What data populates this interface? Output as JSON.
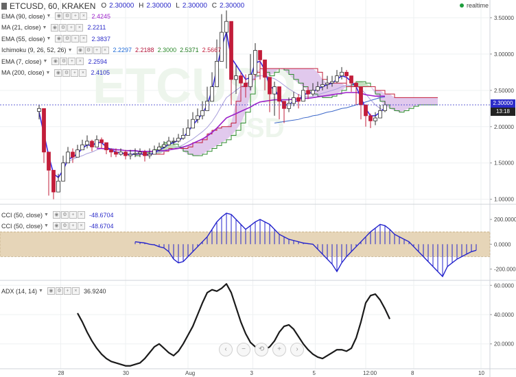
{
  "legend": {
    "symbol": "ETCUSD, 60, KRAKEN",
    "ohlc": {
      "o_label": "O",
      "o": "2.30000",
      "h_label": "H",
      "h": "2.30000",
      "l_label": "L",
      "l": "2.30000",
      "c_label": "C",
      "c": "2.30000"
    },
    "rows": [
      {
        "name": "EMA (90, close)",
        "values": [
          "2.4245"
        ],
        "colors": [
          "#9b1fc9"
        ]
      },
      {
        "name": "MA (21, close)",
        "values": [
          "2.2211"
        ],
        "colors": [
          "#2c2cc9"
        ]
      },
      {
        "name": "EMA (55, close)",
        "values": [
          "2.3837"
        ],
        "colors": [
          "#2c2cc9"
        ]
      },
      {
        "name": "Ichimoku (9, 26, 52, 26)",
        "values": [
          "2.2297",
          "2.2188",
          "2.3000",
          "2.5371",
          "2.5667"
        ],
        "colors": [
          "#1e6ad6",
          "#b3163b",
          "#2c8a2c",
          "#1e7a1e",
          "#c21d3a"
        ]
      },
      {
        "name": "EMA (7, close)",
        "values": [
          "2.2594"
        ],
        "colors": [
          "#2c2cc9"
        ]
      },
      {
        "name": "MA (200, close)",
        "values": [
          "2.4105"
        ],
        "colors": [
          "#2c2cc9"
        ]
      }
    ],
    "cci_rows": [
      {
        "name": "CCI (50, close)",
        "value": "-48.6704"
      },
      {
        "name": "CCI (50, close)",
        "value": "-48.6704"
      }
    ],
    "adx_row": {
      "name": "ADX (14, 14)",
      "value": "36.9240"
    }
  },
  "realtime_label": "realtime",
  "watermark": {
    "main": "ETCUSD",
    "sub": "ETCUSD"
  },
  "price_tag": {
    "price": "2.30000",
    "time": "13:18"
  },
  "nav_buttons": [
    "‹",
    "−",
    "⟲",
    "+",
    "›"
  ],
  "colors": {
    "up": "#2b2b2b",
    "down": "#c21d3a",
    "ema7": "#3a2ae0",
    "ma200": "#3a66c9",
    "ema90": "#9b1fc9",
    "ma21": "#a79ddb",
    "kumo_bull": "#b7d9b3",
    "kumo_bear": "#dcc0ea",
    "senkou_a": "#2c8a2c",
    "senkou_b": "#c21d3a",
    "cci": "#2222cc",
    "cci_band": "#e6d5b8",
    "adx": "#1a1a1a"
  },
  "chart_data": [
    {
      "type": "candlestick",
      "title": "ETCUSD, 60, KRAKEN",
      "x_ticks": [
        "28",
        "30",
        "Aug",
        "3",
        "5",
        "12:00",
        "8",
        "10"
      ],
      "y_ticks": [
        "1.00000",
        "1.50000",
        "2.00000",
        "2.50000",
        "3.00000",
        "3.50000"
      ],
      "ylim": [
        0.95,
        3.65
      ],
      "last_price": 2.3,
      "indicators": [
        "EMA (90, close)",
        "MA (21, close)",
        "EMA (55, close)",
        "Ichimoku (9, 26, 52, 26)",
        "EMA (7, close)",
        "MA (200, close)"
      ],
      "series": [
        {
          "name": "close",
          "values": [
            2.25,
            1.65,
            1.4,
            1.1,
            1.25,
            1.5,
            1.65,
            1.58,
            1.68,
            1.75,
            1.8,
            1.72,
            1.82,
            1.78,
            1.68,
            1.65,
            1.62,
            1.65,
            1.6,
            1.62,
            1.63,
            1.65,
            1.6,
            1.62,
            1.68,
            1.72,
            1.75,
            1.8,
            1.8,
            1.84,
            1.88,
            1.98,
            2.1,
            2.15,
            2.22,
            2.35,
            2.55,
            2.9,
            3.3,
            3.45,
            2.65,
            2.7,
            2.6,
            2.55,
            2.72,
            3.05,
            2.92,
            2.68,
            2.45,
            2.55,
            2.35,
            2.25,
            2.32,
            2.4,
            2.35,
            2.5,
            2.45,
            2.5,
            2.55,
            2.58,
            2.6,
            2.62,
            2.7,
            2.75,
            2.7,
            2.6,
            2.55,
            2.3,
            2.15,
            2.08,
            2.12,
            2.22,
            2.3
          ]
        },
        {
          "name": "high",
          "values": [
            2.3,
            2.0,
            1.65,
            1.3,
            1.35,
            1.6,
            1.72,
            1.7,
            1.75,
            1.82,
            1.88,
            1.82,
            1.88,
            1.85,
            1.76,
            1.7,
            1.7,
            1.7,
            1.68,
            1.68,
            1.7,
            1.7,
            1.68,
            1.7,
            1.74,
            1.78,
            1.8,
            1.86,
            1.85,
            1.9,
            1.98,
            2.1,
            2.2,
            2.25,
            2.35,
            2.55,
            2.75,
            3.2,
            3.55,
            3.6,
            3.1,
            2.85,
            2.75,
            2.72,
            3.0,
            3.15,
            3.02,
            2.85,
            2.6,
            2.62,
            2.5,
            2.35,
            2.4,
            2.48,
            2.45,
            2.6,
            2.55,
            2.6,
            2.62,
            2.65,
            2.7,
            2.7,
            2.78,
            2.82,
            2.78,
            2.7,
            2.62,
            2.45,
            2.3,
            2.18,
            2.2,
            2.3,
            2.35
          ]
        },
        {
          "name": "low",
          "values": [
            2.1,
            1.5,
            1.05,
            1.0,
            1.1,
            1.25,
            1.55,
            1.5,
            1.6,
            1.68,
            1.7,
            1.66,
            1.74,
            1.7,
            1.62,
            1.58,
            1.58,
            1.6,
            1.55,
            1.55,
            1.58,
            1.58,
            1.52,
            1.56,
            1.62,
            1.66,
            1.7,
            1.74,
            1.75,
            1.78,
            1.82,
            1.9,
            2.0,
            2.05,
            2.1,
            2.25,
            2.4,
            2.6,
            2.95,
            2.8,
            2.3,
            2.45,
            2.45,
            2.4,
            2.5,
            2.8,
            2.65,
            2.5,
            2.2,
            2.15,
            2.1,
            2.05,
            2.2,
            2.28,
            2.25,
            2.38,
            2.38,
            2.42,
            2.48,
            2.5,
            2.52,
            2.55,
            2.6,
            2.65,
            2.58,
            2.48,
            2.3,
            2.1,
            2.0,
            1.98,
            2.02,
            2.12,
            2.2
          ]
        },
        {
          "name": "EMA (7, close)",
          "values": [
            2.2,
            1.9,
            1.6,
            1.35,
            1.3,
            1.4,
            1.55,
            1.58,
            1.63,
            1.7,
            1.75,
            1.74,
            1.78,
            1.78,
            1.72,
            1.68,
            1.65,
            1.64,
            1.62,
            1.62,
            1.62,
            1.63,
            1.61,
            1.61,
            1.64,
            1.68,
            1.71,
            1.76,
            1.78,
            1.81,
            1.85,
            1.93,
            2.02,
            2.1,
            2.18,
            2.3,
            2.5,
            2.8,
            3.1,
            3.3,
            2.95,
            2.85,
            2.75,
            2.65,
            2.68,
            2.88,
            2.9,
            2.78,
            2.55,
            2.52,
            2.4,
            2.3,
            2.3,
            2.35,
            2.35,
            2.45,
            2.45,
            2.48,
            2.52,
            2.55,
            2.58,
            2.6,
            2.65,
            2.7,
            2.68,
            2.62,
            2.55,
            2.4,
            2.25,
            2.15,
            2.15,
            2.2,
            2.26
          ]
        },
        {
          "name": "MA (21, close)",
          "values": [
            null,
            null,
            null,
            null,
            null,
            1.5,
            1.52,
            1.55,
            1.58,
            1.6,
            1.63,
            1.65,
            1.68,
            1.7,
            1.7,
            1.7,
            1.69,
            1.68,
            1.67,
            1.66,
            1.66,
            1.65,
            1.64,
            1.63,
            1.64,
            1.65,
            1.66,
            1.68,
            1.7,
            1.72,
            1.75,
            1.79,
            1.83,
            1.88,
            1.93,
            1.99,
            2.07,
            2.17,
            2.29,
            2.4,
            2.45,
            2.5,
            2.55,
            2.58,
            2.62,
            2.68,
            2.7,
            2.7,
            2.68,
            2.66,
            2.62,
            2.57,
            2.52,
            2.48,
            2.44,
            2.42,
            2.41,
            2.42,
            2.44,
            2.46,
            2.48,
            2.5,
            2.52,
            2.55,
            2.57,
            2.57,
            2.56,
            2.52,
            2.45,
            2.37,
            2.3,
            2.25,
            2.22
          ]
        },
        {
          "name": "EMA (90, close)",
          "values": [
            null,
            null,
            null,
            null,
            null,
            null,
            null,
            null,
            null,
            null,
            null,
            null,
            1.7,
            1.7,
            1.69,
            1.69,
            1.68,
            1.68,
            1.67,
            1.67,
            1.67,
            1.66,
            1.66,
            1.66,
            1.66,
            1.67,
            1.67,
            1.68,
            1.69,
            1.7,
            1.72,
            1.74,
            1.77,
            1.8,
            1.83,
            1.87,
            1.92,
            1.98,
            2.05,
            2.12,
            2.15,
            2.18,
            2.21,
            2.24,
            2.27,
            2.31,
            2.34,
            2.35,
            2.36,
            2.37,
            2.37,
            2.37,
            2.37,
            2.38,
            2.38,
            2.39,
            2.39,
            2.4,
            2.41,
            2.42,
            2.43,
            2.44,
            2.45,
            2.46,
            2.47,
            2.47,
            2.47,
            2.46,
            2.44,
            2.43,
            2.42,
            2.42,
            2.42
          ]
        },
        {
          "name": "MA (200, close)",
          "values": [
            null,
            null,
            null,
            null,
            null,
            null,
            null,
            null,
            null,
            null,
            null,
            null,
            null,
            null,
            null,
            null,
            null,
            null,
            null,
            null,
            null,
            null,
            null,
            null,
            null,
            null,
            null,
            null,
            null,
            null,
            null,
            null,
            null,
            null,
            null,
            null,
            null,
            null,
            null,
            null,
            null,
            null,
            null,
            null,
            null,
            null,
            null,
            null,
            null,
            2.05,
            2.06,
            2.07,
            2.08,
            2.09,
            2.1,
            2.12,
            2.13,
            2.15,
            2.16,
            2.18,
            2.2,
            2.21,
            2.23,
            2.25,
            2.26,
            2.28,
            2.3,
            2.32,
            2.34,
            2.36,
            2.38,
            2.4,
            2.41
          ]
        },
        {
          "name": "Senkou A",
          "values": [
            null,
            null,
            null,
            null,
            null,
            null,
            null,
            null,
            null,
            null,
            null,
            null,
            null,
            null,
            null,
            null,
            null,
            null,
            null,
            null,
            1.6,
            1.62,
            1.64,
            1.66,
            1.68,
            1.72,
            1.78,
            1.78,
            1.76,
            1.72,
            1.66,
            1.62,
            1.6,
            1.6,
            1.62,
            1.66,
            1.7,
            1.74,
            1.78,
            1.82,
            1.88,
            1.95,
            2.05,
            2.2,
            2.45,
            2.7,
            2.8,
            2.75,
            2.7,
            2.75,
            2.8,
            2.78,
            2.72,
            2.65,
            2.6,
            2.55,
            2.5,
            2.45,
            2.42,
            2.4,
            2.4,
            2.42,
            2.45,
            2.5,
            2.55,
            2.58,
            2.62,
            2.62,
            2.6,
            2.55,
            2.45,
            2.35,
            2.3,
            2.25,
            2.22,
            2.2,
            2.22,
            2.25,
            2.28,
            2.3,
            2.3,
            2.3,
            2.3,
            2.3
          ]
        },
        {
          "name": "Senkou B",
          "values": [
            null,
            null,
            null,
            null,
            null,
            null,
            null,
            null,
            null,
            null,
            null,
            null,
            null,
            null,
            null,
            null,
            null,
            null,
            null,
            null,
            1.62,
            1.62,
            1.62,
            1.62,
            1.62,
            1.62,
            1.66,
            1.7,
            1.7,
            1.7,
            1.7,
            1.72,
            1.78,
            1.78,
            1.82,
            1.9,
            1.95,
            1.98,
            2.0,
            2.0,
            2.05,
            2.35,
            2.55,
            2.6,
            2.65,
            2.75,
            2.8,
            2.8,
            2.8,
            2.8,
            2.8,
            2.8,
            2.8,
            2.8,
            2.8,
            2.8,
            2.8,
            2.8,
            2.75,
            2.65,
            2.6,
            2.6,
            2.6,
            2.6,
            2.55,
            2.55,
            2.55,
            2.55,
            2.55,
            2.55,
            2.5,
            2.5,
            2.45,
            2.45,
            2.4,
            2.4,
            2.4,
            2.4,
            2.4,
            2.4,
            2.4,
            2.4,
            2.4,
            2.4
          ]
        }
      ]
    },
    {
      "type": "bar",
      "title": "CCI (50, close)",
      "y_ticks": [
        "200.0000",
        "0.0000",
        "-200.0000"
      ],
      "band": [
        -100,
        100
      ],
      "ylim": [
        -280,
        300
      ],
      "series": [
        {
          "name": "CCI (50, close)",
          "start_index": 20,
          "values": [
            20,
            15,
            10,
            0,
            -5,
            -20,
            -30,
            -60,
            -120,
            -150,
            -140,
            -100,
            -60,
            -20,
            20,
            60,
            120,
            180,
            220,
            250,
            240,
            200,
            160,
            120,
            150,
            180,
            200,
            180,
            160,
            120,
            80,
            60,
            40,
            30,
            20,
            10,
            5,
            0,
            -40,
            -80,
            -120,
            -160,
            -220,
            -150,
            -100,
            -60,
            -20,
            20,
            60,
            100,
            130,
            160,
            150,
            120,
            80,
            60,
            40,
            20,
            -20,
            -60,
            -100,
            -140,
            -180,
            -220,
            -260,
            -180,
            -150,
            -120,
            -100,
            -80,
            -60,
            -49
          ]
        }
      ]
    },
    {
      "type": "line",
      "title": "ADX (14, 14)",
      "y_ticks": [
        "60.0000",
        "40.0000",
        "20.0000"
      ],
      "ylim": [
        3,
        62
      ],
      "series": [
        {
          "name": "ADX (14, 14)",
          "start_index": 8,
          "values": [
            41,
            35,
            28,
            22,
            17,
            13,
            10,
            8,
            7,
            6,
            5,
            5,
            6,
            7,
            10,
            14,
            18,
            20,
            17,
            14,
            12,
            15,
            20,
            26,
            32,
            40,
            48,
            55,
            57,
            56,
            58,
            61,
            55,
            45,
            35,
            27,
            21,
            18,
            17,
            16,
            18,
            22,
            28,
            32,
            33,
            30,
            25,
            20,
            16,
            13,
            11,
            10,
            12,
            14,
            16,
            16,
            15,
            17,
            24,
            35,
            48,
            53,
            54,
            50,
            44,
            37
          ]
        }
      ]
    }
  ]
}
